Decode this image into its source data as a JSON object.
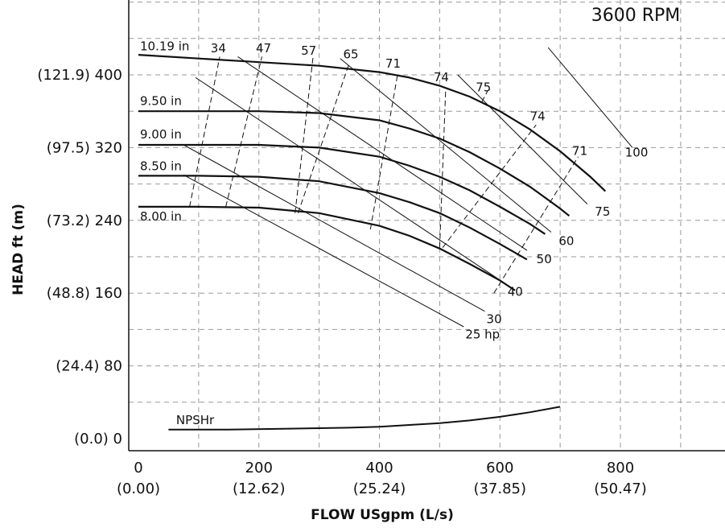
{
  "chart_data": {
    "type": "line",
    "title": "3600 RPM",
    "xlabel": "FLOW USgpm (L/s)",
    "ylabel": "HEAD ft (m)",
    "xlim": [
      0,
      950
    ],
    "ylim": [
      0,
      580
    ],
    "grid": true,
    "x_ticks": [
      {
        "value": 0,
        "label": "0",
        "sublabel": "(0.00)"
      },
      {
        "value": 200,
        "label": "200",
        "sublabel": "(12.62)"
      },
      {
        "value": 400,
        "label": "400",
        "sublabel": "(25.24)"
      },
      {
        "value": 600,
        "label": "600",
        "sublabel": "(37.85)"
      },
      {
        "value": 800,
        "label": "800",
        "sublabel": "(50.47)"
      }
    ],
    "y_ticks": [
      {
        "value": 0,
        "label": "(0.0) 0"
      },
      {
        "value": 80,
        "label": "(24.4) 80"
      },
      {
        "value": 160,
        "label": "(48.8) 160"
      },
      {
        "value": 240,
        "label": "(73.2) 240"
      },
      {
        "value": 320,
        "label": "(97.5) 320"
      },
      {
        "value": 400,
        "label": "(121.9) 400"
      }
    ],
    "impeller_curves": [
      {
        "label": "10.19 in",
        "label_at": [
          0,
          427
        ],
        "x": [
          0,
          100,
          200,
          300,
          400,
          450,
          500,
          550,
          600,
          650,
          700,
          750,
          775
        ],
        "y": [
          422,
          418,
          414,
          410,
          403,
          397,
          388,
          376,
          360,
          340,
          316,
          288,
          272
        ]
      },
      {
        "label": "9.50 in",
        "label_at": [
          0,
          367
        ],
        "x": [
          0,
          100,
          200,
          300,
          400,
          450,
          500,
          550,
          600,
          650,
          700,
          715
        ],
        "y": [
          360,
          360,
          360,
          358,
          350,
          341,
          330,
          315,
          297,
          277,
          253,
          245
        ]
      },
      {
        "label": "9.00 in",
        "label_at": [
          0,
          330
        ],
        "x": [
          0,
          100,
          200,
          300,
          400,
          450,
          500,
          550,
          600,
          650,
          675
        ],
        "y": [
          323,
          323,
          323,
          320,
          310,
          300,
          288,
          273,
          255,
          236,
          225
        ]
      },
      {
        "label": "8.50 in",
        "label_at": [
          0,
          295
        ],
        "x": [
          0,
          100,
          200,
          300,
          400,
          450,
          500,
          550,
          600,
          645
        ],
        "y": [
          289,
          289,
          288,
          283,
          270,
          260,
          248,
          232,
          214,
          197
        ]
      },
      {
        "label": "8.00 in",
        "label_at": [
          0,
          240
        ],
        "x": [
          0,
          100,
          200,
          300,
          400,
          450,
          500,
          550,
          600,
          625
        ],
        "y": [
          255,
          255,
          254,
          248,
          234,
          223,
          209,
          192,
          174,
          163
        ]
      }
    ],
    "power_curves": [
      {
        "label": "25 hp",
        "x": [
          75,
          540
        ],
        "y": [
          290,
          123
        ],
        "label_at": [
          540,
          110
        ]
      },
      {
        "label": "30",
        "x": [
          75,
          575
        ],
        "y": [
          323,
          140
        ],
        "label_at": [
          575,
          127
        ]
      },
      {
        "label": "40",
        "x": [
          95,
          610
        ],
        "y": [
          397,
          170
        ],
        "label_at": [
          610,
          157
        ]
      },
      {
        "label": "50",
        "x": [
          165,
          645
        ],
        "y": [
          420,
          207
        ],
        "label_at": [
          658,
          193
        ]
      },
      {
        "label": "60",
        "x": [
          335,
          685
        ],
        "y": [
          418,
          227
        ],
        "label_at": [
          695,
          213
        ]
      },
      {
        "label": "75",
        "x": [
          530,
          745
        ],
        "y": [
          400,
          258
        ],
        "label_at": [
          755,
          245
        ]
      },
      {
        "label": "100",
        "x": [
          680,
          820
        ],
        "y": [
          430,
          320
        ],
        "label_at": [
          805,
          310
        ]
      }
    ],
    "efficiency_curves": [
      {
        "label": "34",
        "x": [
          85,
          135
        ],
        "y": [
          255,
          420
        ],
        "label_at": [
          130,
          425
        ]
      },
      {
        "label": "47",
        "x": [
          145,
          205
        ],
        "y": [
          255,
          420
        ],
        "label_at": [
          205,
          425
        ]
      },
      {
        "label": "57",
        "x": [
          260,
          290
        ],
        "y": [
          248,
          420
        ],
        "label_at": [
          280,
          422
        ]
      },
      {
        "label": "65",
        "x": [
          265,
          350
        ],
        "y": [
          248,
          413
        ],
        "label_at": [
          350,
          418
        ]
      },
      {
        "label": "71",
        "x": [
          385,
          430
        ],
        "y": [
          230,
          400
        ],
        "label_at": [
          420,
          408
        ]
      },
      {
        "label": "74",
        "x": [
          500,
          510
        ],
        "y": [
          210,
          385
        ],
        "label_at": [
          500,
          393
        ]
      },
      {
        "label": "75",
        "x": [
          570,
          580
        ],
        "y": [
          370,
          383
        ],
        "label_at": [
          570,
          382
        ]
      },
      {
        "label": "74",
        "x": [
          505,
          660
        ],
        "y": [
          210,
          345
        ],
        "label_at": [
          660,
          350
        ]
      },
      {
        "label": "71",
        "x": [
          590,
          730
        ],
        "y": [
          160,
          310
        ],
        "label_at": [
          730,
          312
        ]
      }
    ],
    "npshr": {
      "label": "NPSHr",
      "x": [
        50,
        150,
        250,
        350,
        400,
        450,
        500,
        550,
        600,
        650,
        700
      ],
      "y": [
        10,
        10,
        11,
        12,
        13,
        15,
        17,
        20,
        24,
        29,
        35
      ]
    }
  }
}
